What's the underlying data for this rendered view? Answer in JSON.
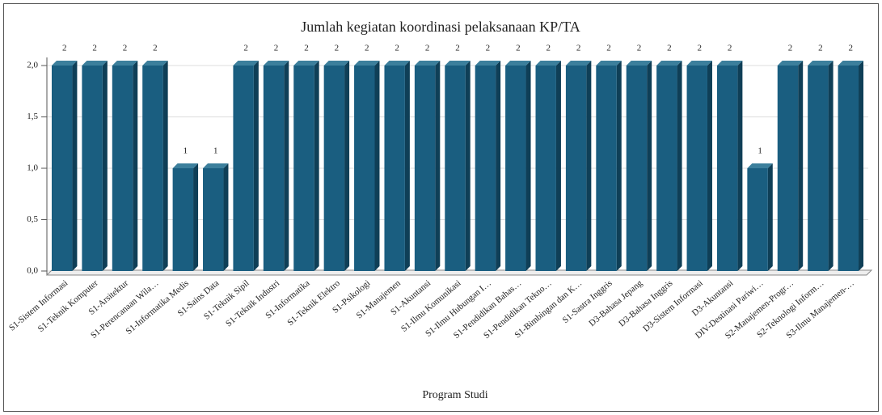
{
  "chart_data": {
    "type": "bar",
    "title": "Jumlah kegiatan koordinasi pelaksanaan KP/TA",
    "xlabel": "Program Studi",
    "categories": [
      "S1-Sistem Informasi",
      "S1-Teknik Komputer",
      "S1-Arsitektur",
      "S1-Perencanaan Wila…",
      "S1-Informatika Medis",
      "S1-Sains Data",
      "S1-Teknik Sipil",
      "S1-Teknik Industri",
      "S1-Informatika",
      "S1-Teknik Elektro",
      "S1-Psikologi",
      "S1-Manajemen",
      "S1-Akuntansi",
      "S1-Ilmu Komunikasi",
      "S1-Ilmu Hubungan I…",
      "S1-Pendidikan Bahas…",
      "S1-Pendidikan Tekno…",
      "S1-Bimbingan dan K…",
      "S1-Sastra Inggris",
      "D3-Bahasa Jepang",
      "D3-Bahasa Inggris",
      "D3-Sistem Informasi",
      "D3-Akuntansi",
      "DIV-Destinasi Pariwi…",
      "S2-Manajemen-Progr…",
      "S2-Teknologi Inform…",
      "S3-Ilmu Manajemen-…"
    ],
    "values": [
      2,
      2,
      2,
      2,
      1,
      1,
      2,
      2,
      2,
      2,
      2,
      2,
      2,
      2,
      2,
      2,
      2,
      2,
      2,
      2,
      2,
      2,
      2,
      1,
      2,
      2,
      2
    ],
    "color": "#1a5e80",
    "ylim": [
      0,
      2
    ],
    "yticks": [
      {
        "value": 0,
        "label": "0,0"
      },
      {
        "value": 0.5,
        "label": "0,5"
      },
      {
        "value": 1,
        "label": "1,0"
      },
      {
        "value": 1.5,
        "label": "1,5"
      },
      {
        "value": 2,
        "label": "2,0"
      }
    ],
    "grid": true
  }
}
